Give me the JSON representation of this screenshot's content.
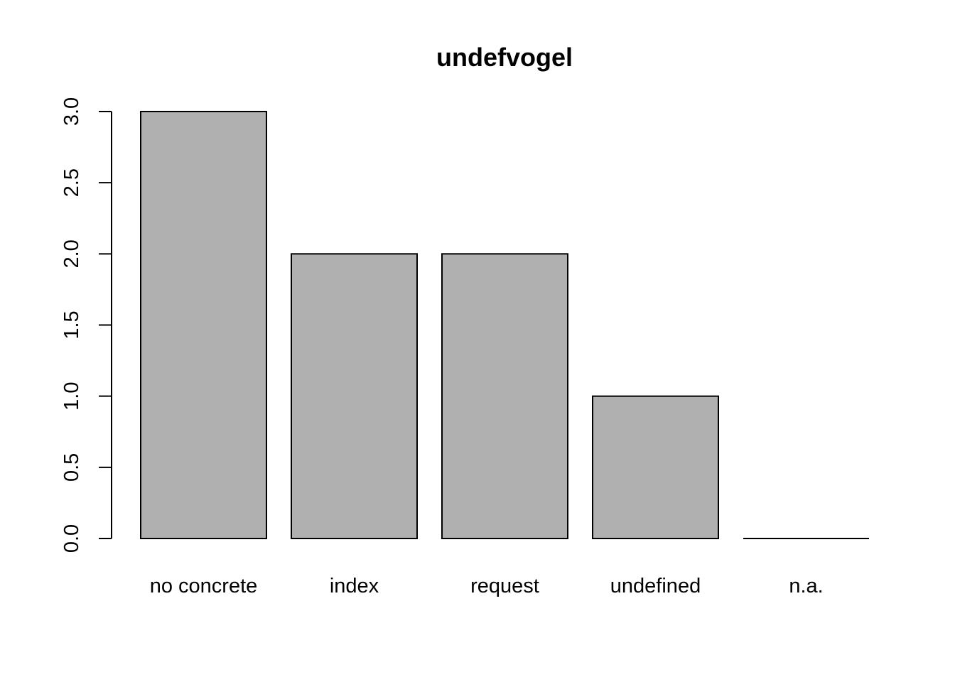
{
  "chart_data": {
    "type": "bar",
    "title": "undefvogel",
    "xlabel": "",
    "ylabel": "",
    "categories": [
      "no concrete",
      "index",
      "request",
      "undefined",
      "n.a."
    ],
    "values": [
      3,
      2,
      2,
      1,
      0
    ],
    "ylim": [
      0,
      3
    ],
    "yticks": [
      "0.0",
      "0.5",
      "1.0",
      "1.5",
      "2.0",
      "2.5",
      "3.0"
    ],
    "bar_color": "#b0b0b0",
    "outline_color": "#000000",
    "grid": false,
    "legend": "none"
  }
}
